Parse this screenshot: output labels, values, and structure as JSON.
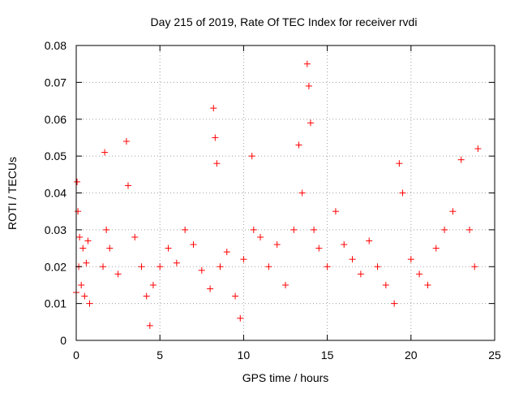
{
  "chart_data": {
    "type": "scatter",
    "title": "Day 215 of 2019, Rate Of TEC Index for receiver rvdi",
    "xlabel": "GPS time / hours",
    "ylabel": "ROTI / TECUs",
    "xlim": [
      0,
      25
    ],
    "ylim": [
      0,
      0.08
    ],
    "x_ticks": [
      0,
      5,
      10,
      15,
      20,
      25
    ],
    "x_tick_labels": [
      "0",
      "5",
      "10",
      "15",
      "20",
      "25"
    ],
    "y_ticks": [
      0,
      0.01,
      0.02,
      0.03,
      0.04,
      0.05,
      0.06,
      0.07,
      0.08
    ],
    "y_tick_labels": [
      "0",
      "0.01",
      "0.02",
      "0.03",
      "0.04",
      "0.05",
      "0.06",
      "0.07",
      "0.08"
    ],
    "grid": true,
    "marker": "+",
    "marker_color": "#ff0000",
    "series": [
      {
        "name": "ROTI rvdi",
        "x": [
          0.0,
          0.05,
          0.1,
          0.15,
          0.2,
          0.3,
          0.4,
          0.5,
          0.6,
          0.7,
          0.8,
          1.6,
          1.7,
          1.8,
          2.0,
          2.5,
          3.0,
          3.1,
          3.5,
          3.9,
          4.2,
          4.4,
          4.6,
          5.0,
          5.5,
          6.0,
          6.5,
          7.0,
          7.5,
          8.0,
          8.2,
          8.3,
          8.4,
          8.6,
          9.0,
          9.5,
          9.8,
          10.0,
          10.5,
          10.6,
          11.0,
          11.5,
          12.0,
          12.5,
          13.0,
          13.3,
          13.5,
          13.8,
          13.9,
          14.0,
          14.2,
          14.5,
          15.0,
          15.5,
          16.0,
          16.5,
          17.0,
          17.5,
          18.0,
          18.5,
          19.0,
          19.3,
          19.5,
          20.0,
          20.5,
          21.0,
          21.5,
          22.0,
          22.5,
          23.0,
          23.5,
          23.8,
          24.0
        ],
        "y": [
          0.013,
          0.043,
          0.035,
          0.02,
          0.028,
          0.015,
          0.025,
          0.012,
          0.021,
          0.027,
          0.01,
          0.02,
          0.051,
          0.03,
          0.025,
          0.018,
          0.054,
          0.042,
          0.028,
          0.02,
          0.012,
          0.004,
          0.015,
          0.02,
          0.025,
          0.021,
          0.03,
          0.026,
          0.019,
          0.014,
          0.063,
          0.055,
          0.048,
          0.02,
          0.024,
          0.012,
          0.006,
          0.022,
          0.05,
          0.03,
          0.028,
          0.02,
          0.026,
          0.015,
          0.03,
          0.053,
          0.04,
          0.075,
          0.069,
          0.059,
          0.03,
          0.025,
          0.02,
          0.035,
          0.026,
          0.022,
          0.018,
          0.027,
          0.02,
          0.015,
          0.01,
          0.048,
          0.04,
          0.022,
          0.018,
          0.015,
          0.025,
          0.03,
          0.035,
          0.049,
          0.03,
          0.02,
          0.052
        ]
      }
    ]
  }
}
